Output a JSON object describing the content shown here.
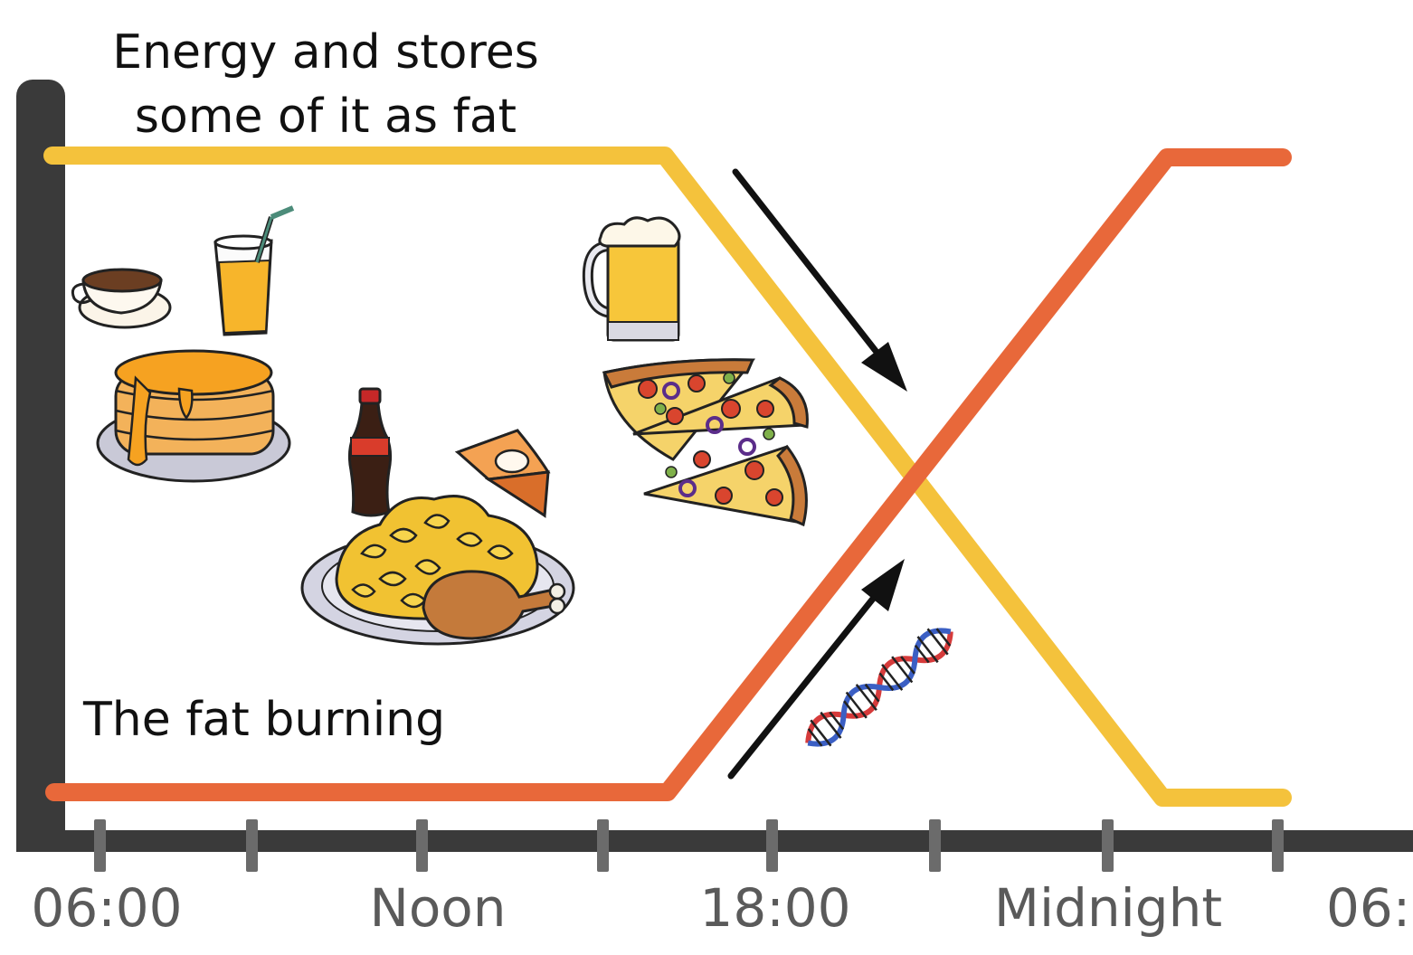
{
  "labels": {
    "energy_line1": "Energy and stores",
    "energy_line2": "some of it as fat",
    "fat_burning": "The fat burning"
  },
  "axis": {
    "ticks": [
      "06:00",
      "Noon",
      "18:00",
      "Midnight",
      "06:"
    ]
  },
  "colors": {
    "axis": "#3a3a3a",
    "tick_marks": "#6b6b6b",
    "energy_line": "#f4c23c",
    "fat_line": "#e8683a",
    "arrow": "#111111",
    "tick_text": "#5a5a5a"
  },
  "illustrations": [
    "coffee-cup-icon",
    "orange-juice-icon",
    "pancakes-icon",
    "cola-bottle-icon",
    "pie-slice-icon",
    "pasta-chicken-plate-icon",
    "beer-mug-icon",
    "pizza-slices-icon",
    "dna-helix-icon",
    "arrow-down-right-icon",
    "arrow-up-right-icon"
  ]
}
